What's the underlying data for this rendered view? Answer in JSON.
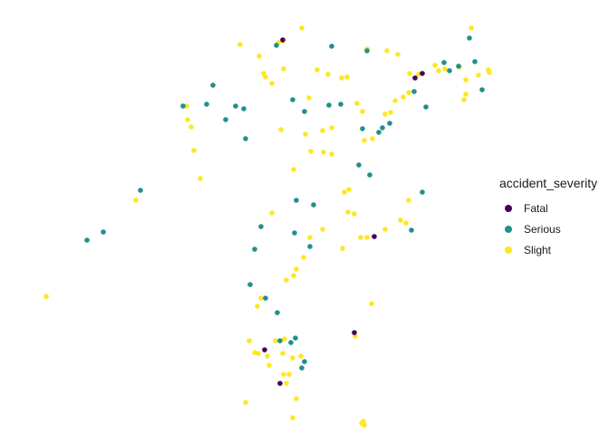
{
  "chart_data": {
    "type": "scatter",
    "title": "",
    "xlabel": "",
    "ylabel": "",
    "axes_visible": false,
    "grid": false,
    "legend": {
      "title": "accident_severity",
      "position": "right",
      "entries": [
        {
          "label": "Fatal",
          "color": "#440154"
        },
        {
          "label": "Serious",
          "color": "#21908C"
        },
        {
          "label": "Slight",
          "color": "#FDE725"
        }
      ]
    },
    "xlim": [
      0,
      540
    ],
    "ylim": [
      0,
      470
    ],
    "series": [
      {
        "name": "Fatal",
        "color": "#440154",
        "points": [
          [
            292,
            34
          ],
          [
            438,
            76
          ],
          [
            446,
            71
          ],
          [
            393,
            251
          ],
          [
            272,
            376
          ],
          [
            289,
            413
          ],
          [
            371,
            357
          ]
        ]
      },
      {
        "name": "Serious",
        "color": "#21908C",
        "points": [
          [
            285,
            40
          ],
          [
            346,
            41
          ],
          [
            385,
            46
          ],
          [
            498,
            32
          ],
          [
            470,
            59
          ],
          [
            504,
            58
          ],
          [
            476,
            68
          ],
          [
            486,
            63
          ],
          [
            215,
            84
          ],
          [
            182,
            107
          ],
          [
            208,
            105
          ],
          [
            240,
            107
          ],
          [
            249,
            110
          ],
          [
            229,
            122
          ],
          [
            251,
            143
          ],
          [
            303,
            100
          ],
          [
            316,
            113
          ],
          [
            343,
            106
          ],
          [
            356,
            105
          ],
          [
            380,
            132
          ],
          [
            402,
            131
          ],
          [
            410,
            126
          ],
          [
            398,
            136
          ],
          [
            450,
            108
          ],
          [
            437,
            91
          ],
          [
            512,
            89
          ],
          [
            376,
            172
          ],
          [
            388,
            183
          ],
          [
            446,
            202
          ],
          [
            135,
            200
          ],
          [
            94,
            246
          ],
          [
            76,
            255
          ],
          [
            307,
            211
          ],
          [
            326,
            216
          ],
          [
            268,
            240
          ],
          [
            305,
            247
          ],
          [
            322,
            262
          ],
          [
            261,
            265
          ],
          [
            434,
            244
          ],
          [
            256,
            304
          ],
          [
            273,
            319
          ],
          [
            286,
            335
          ],
          [
            289,
            366
          ],
          [
            301,
            368
          ],
          [
            306,
            363
          ],
          [
            313,
            396
          ],
          [
            316,
            389
          ]
        ]
      },
      {
        "name": "Slight",
        "color": "#FDE725",
        "points": [
          [
            313,
            21
          ],
          [
            245,
            39
          ],
          [
            287,
            37
          ],
          [
            292,
            35
          ],
          [
            266,
            52
          ],
          [
            271,
            71
          ],
          [
            273,
            75
          ],
          [
            293,
            66
          ],
          [
            280,
            82
          ],
          [
            330,
            67
          ],
          [
            321,
            98
          ],
          [
            342,
            72
          ],
          [
            357,
            76
          ],
          [
            363,
            75
          ],
          [
            385,
            44
          ],
          [
            407,
            46
          ],
          [
            419,
            50
          ],
          [
            432,
            71
          ],
          [
            442,
            72
          ],
          [
            500,
            21
          ],
          [
            460,
            62
          ],
          [
            464,
            68
          ],
          [
            471,
            66
          ],
          [
            487,
            64
          ],
          [
            494,
            78
          ],
          [
            508,
            73
          ],
          [
            519,
            67
          ],
          [
            520,
            70
          ],
          [
            425,
            97
          ],
          [
            431,
            92
          ],
          [
            416,
            101
          ],
          [
            411,
            114
          ],
          [
            374,
            104
          ],
          [
            380,
            113
          ],
          [
            382,
            145
          ],
          [
            391,
            143
          ],
          [
            405,
            116
          ],
          [
            494,
            94
          ],
          [
            492,
            100
          ],
          [
            186,
            107
          ],
          [
            187,
            122
          ],
          [
            191,
            130
          ],
          [
            290,
            133
          ],
          [
            317,
            138
          ],
          [
            336,
            134
          ],
          [
            346,
            131
          ],
          [
            323,
            157
          ],
          [
            337,
            158
          ],
          [
            346,
            160
          ],
          [
            194,
            156
          ],
          [
            201,
            187
          ],
          [
            130,
            211
          ],
          [
            31,
            317
          ],
          [
            304,
            177
          ],
          [
            360,
            202
          ],
          [
            365,
            199
          ],
          [
            364,
            224
          ],
          [
            371,
            226
          ],
          [
            378,
            252
          ],
          [
            385,
            252
          ],
          [
            405,
            243
          ],
          [
            422,
            233
          ],
          [
            428,
            236
          ],
          [
            431,
            211
          ],
          [
            280,
            225
          ],
          [
            336,
            243
          ],
          [
            322,
            252
          ],
          [
            315,
            274
          ],
          [
            307,
            287
          ],
          [
            304,
            294
          ],
          [
            296,
            299
          ],
          [
            358,
            264
          ],
          [
            268,
            319
          ],
          [
            264,
            328
          ],
          [
            390,
            325
          ],
          [
            255,
            366
          ],
          [
            261,
            379
          ],
          [
            265,
            380
          ],
          [
            275,
            383
          ],
          [
            277,
            393
          ],
          [
            284,
            366
          ],
          [
            294,
            364
          ],
          [
            292,
            380
          ],
          [
            303,
            385
          ],
          [
            312,
            383
          ],
          [
            293,
            403
          ],
          [
            299,
            403
          ],
          [
            296,
            413
          ],
          [
            307,
            430
          ],
          [
            251,
            434
          ],
          [
            303,
            451
          ],
          [
            381,
            455
          ],
          [
            379,
            457
          ],
          [
            382,
            459
          ],
          [
            372,
            361
          ]
        ]
      }
    ]
  }
}
